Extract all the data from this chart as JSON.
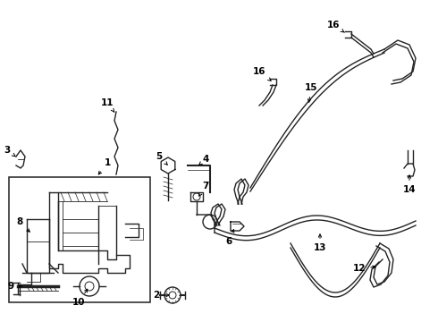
{
  "background_color": "#ffffff",
  "line_color": "#222222",
  "lw": 1.0,
  "fig_w": 4.9,
  "fig_h": 3.6,
  "dpi": 100
}
